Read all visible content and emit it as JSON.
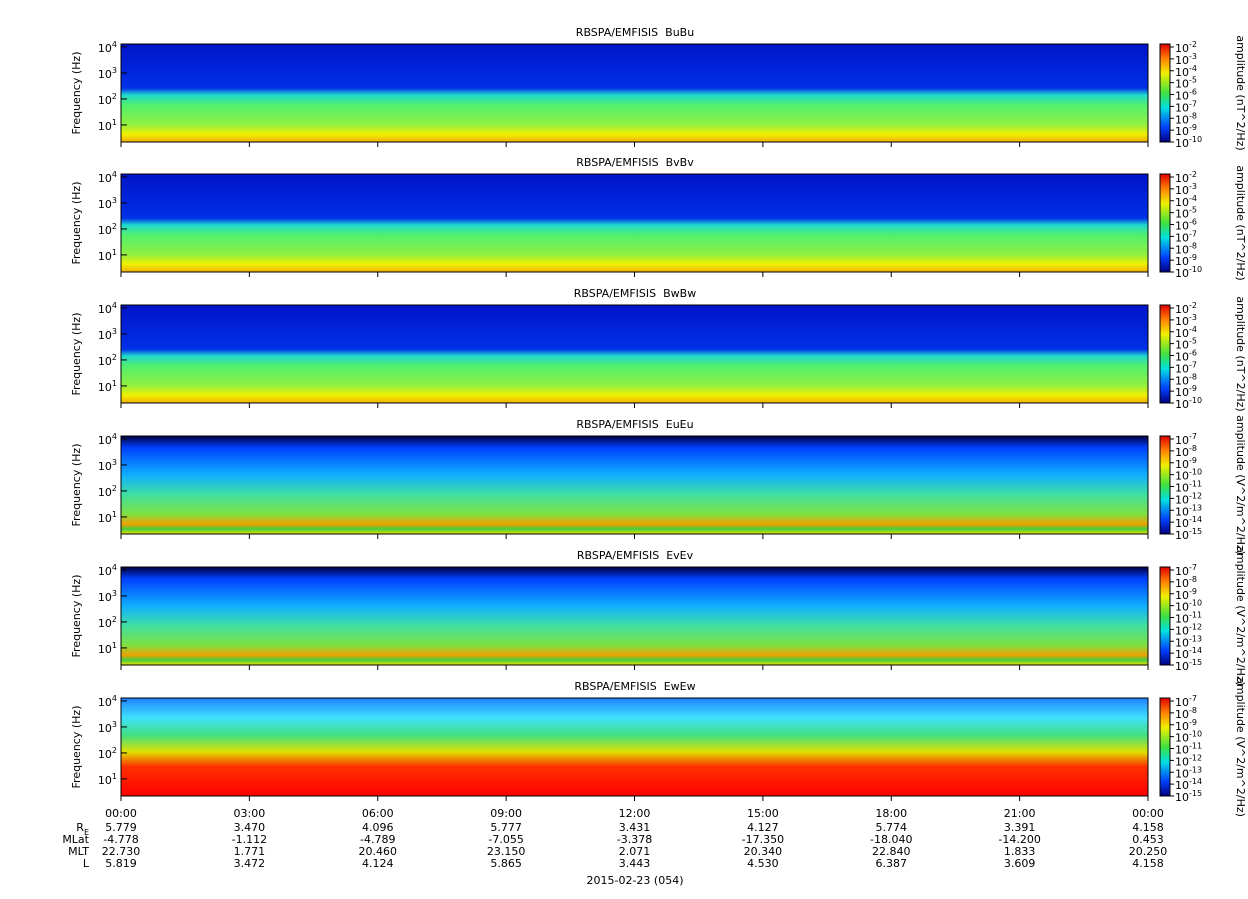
{
  "chart_data": [
    {
      "type": "spectrogram",
      "title": "RBSPA/EMFISIS  BuBu",
      "ylabel": "Frequency (Hz)",
      "ylog": true,
      "ylim": [
        2.2,
        13000
      ],
      "yticks": [
        {
          "value": 10,
          "label": "10^1"
        },
        {
          "value": 100,
          "label": "10^2"
        },
        {
          "value": 1000,
          "label": "10^3"
        },
        {
          "value": 10000,
          "label": "10^4"
        }
      ],
      "colorbar": {
        "label": "amplitude (nT^2/Hz)",
        "log": true,
        "lim": [
          1e-10,
          0.01
        ],
        "ticks": [
          {
            "value": 0.01,
            "label": "10^-2"
          },
          {
            "value": 0.001,
            "label": "10^-3"
          },
          {
            "value": 0.0001,
            "label": "10^-4"
          },
          {
            "value": 1e-05,
            "label": "10^-5"
          },
          {
            "value": 1e-06,
            "label": "10^-6"
          },
          {
            "value": 1e-07,
            "label": "10^-7"
          },
          {
            "value": 1e-08,
            "label": "10^-8"
          },
          {
            "value": 1e-09,
            "label": "10^-9"
          },
          {
            "value": 1e-10,
            "label": "10^-10"
          }
        ]
      }
    },
    {
      "type": "spectrogram",
      "title": "RBSPA/EMFISIS  BvBv",
      "ylabel": "Frequency (Hz)",
      "ylog": true,
      "ylim": [
        2.2,
        13000
      ],
      "yticks": [
        {
          "value": 10,
          "label": "10^1"
        },
        {
          "value": 100,
          "label": "10^2"
        },
        {
          "value": 1000,
          "label": "10^3"
        },
        {
          "value": 10000,
          "label": "10^4"
        }
      ],
      "colorbar": {
        "label": "amplitude (nT^2/Hz)",
        "log": true,
        "lim": [
          1e-10,
          0.01
        ],
        "ticks": [
          {
            "value": 0.01,
            "label": "10^-2"
          },
          {
            "value": 0.001,
            "label": "10^-3"
          },
          {
            "value": 0.0001,
            "label": "10^-4"
          },
          {
            "value": 1e-05,
            "label": "10^-5"
          },
          {
            "value": 1e-06,
            "label": "10^-6"
          },
          {
            "value": 1e-07,
            "label": "10^-7"
          },
          {
            "value": 1e-08,
            "label": "10^-8"
          },
          {
            "value": 1e-09,
            "label": "10^-9"
          },
          {
            "value": 1e-10,
            "label": "10^-10"
          }
        ]
      }
    },
    {
      "type": "spectrogram",
      "title": "RBSPA/EMFISIS  BwBw",
      "ylabel": "Frequency (Hz)",
      "ylog": true,
      "ylim": [
        2.2,
        13000
      ],
      "yticks": [
        {
          "value": 10,
          "label": "10^1"
        },
        {
          "value": 100,
          "label": "10^2"
        },
        {
          "value": 1000,
          "label": "10^3"
        },
        {
          "value": 10000,
          "label": "10^4"
        }
      ],
      "colorbar": {
        "label": "amplitude (nT^2/Hz)",
        "log": true,
        "lim": [
          1e-10,
          0.01
        ],
        "ticks": [
          {
            "value": 0.01,
            "label": "10^-2"
          },
          {
            "value": 0.001,
            "label": "10^-3"
          },
          {
            "value": 0.0001,
            "label": "10^-4"
          },
          {
            "value": 1e-05,
            "label": "10^-5"
          },
          {
            "value": 1e-06,
            "label": "10^-6"
          },
          {
            "value": 1e-07,
            "label": "10^-7"
          },
          {
            "value": 1e-08,
            "label": "10^-8"
          },
          {
            "value": 1e-09,
            "label": "10^-9"
          },
          {
            "value": 1e-10,
            "label": "10^-10"
          }
        ]
      }
    },
    {
      "type": "spectrogram",
      "title": "RBSPA/EMFISIS  EuEu",
      "ylabel": "Frequency (Hz)",
      "ylog": true,
      "ylim": [
        2.2,
        13000
      ],
      "yticks": [
        {
          "value": 10,
          "label": "10^1"
        },
        {
          "value": 100,
          "label": "10^2"
        },
        {
          "value": 1000,
          "label": "10^3"
        },
        {
          "value": 10000,
          "label": "10^4"
        }
      ],
      "colorbar": {
        "label": "amplitude (V^2/m^2/Hz)",
        "log": true,
        "lim": [
          1e-15,
          1e-07
        ],
        "ticks": [
          {
            "value": 1e-07,
            "label": "10^-7"
          },
          {
            "value": 1e-08,
            "label": "10^-8"
          },
          {
            "value": 1e-09,
            "label": "10^-9"
          },
          {
            "value": 1e-10,
            "label": "10^-10"
          },
          {
            "value": 1e-11,
            "label": "10^-11"
          },
          {
            "value": 1e-12,
            "label": "10^-12"
          },
          {
            "value": 1e-13,
            "label": "10^-13"
          },
          {
            "value": 1e-14,
            "label": "10^-14"
          },
          {
            "value": 1e-15,
            "label": "10^-15"
          }
        ]
      }
    },
    {
      "type": "spectrogram",
      "title": "RBSPA/EMFISIS  EvEv",
      "ylabel": "Frequency (Hz)",
      "ylog": true,
      "ylim": [
        2.2,
        13000
      ],
      "yticks": [
        {
          "value": 10,
          "label": "10^1"
        },
        {
          "value": 100,
          "label": "10^2"
        },
        {
          "value": 1000,
          "label": "10^3"
        },
        {
          "value": 10000,
          "label": "10^4"
        }
      ],
      "colorbar": {
        "label": "amplitude (V^2/m^2/Hz)",
        "log": true,
        "lim": [
          1e-15,
          1e-07
        ],
        "ticks": [
          {
            "value": 1e-07,
            "label": "10^-7"
          },
          {
            "value": 1e-08,
            "label": "10^-8"
          },
          {
            "value": 1e-09,
            "label": "10^-9"
          },
          {
            "value": 1e-10,
            "label": "10^-10"
          },
          {
            "value": 1e-11,
            "label": "10^-11"
          },
          {
            "value": 1e-12,
            "label": "10^-12"
          },
          {
            "value": 1e-13,
            "label": "10^-13"
          },
          {
            "value": 1e-14,
            "label": "10^-14"
          },
          {
            "value": 1e-15,
            "label": "10^-15"
          }
        ]
      }
    },
    {
      "type": "spectrogram",
      "title": "RBSPA/EMFISIS  EwEw",
      "ylabel": "Frequency (Hz)",
      "ylog": true,
      "ylim": [
        2.2,
        13000
      ],
      "yticks": [
        {
          "value": 10,
          "label": "10^1"
        },
        {
          "value": 100,
          "label": "10^2"
        },
        {
          "value": 1000,
          "label": "10^3"
        },
        {
          "value": 10000,
          "label": "10^4"
        }
      ],
      "colorbar": {
        "label": "amplitude (V^2/m^2/Hz)",
        "log": true,
        "lim": [
          1e-15,
          1e-07
        ],
        "ticks": [
          {
            "value": 1e-07,
            "label": "10^-7"
          },
          {
            "value": 1e-08,
            "label": "10^-8"
          },
          {
            "value": 1e-09,
            "label": "10^-9"
          },
          {
            "value": 1e-10,
            "label": "10^-10"
          },
          {
            "value": 1e-11,
            "label": "10^-11"
          },
          {
            "value": 1e-12,
            "label": "10^-12"
          },
          {
            "value": 1e-13,
            "label": "10^-13"
          },
          {
            "value": 1e-14,
            "label": "10^-14"
          },
          {
            "value": 1e-15,
            "label": "10^-15"
          }
        ]
      }
    }
  ],
  "time_axis": {
    "xlim": [
      0,
      24
    ],
    "xticks": [
      {
        "value": 0,
        "label": "00:00"
      },
      {
        "value": 3,
        "label": "03:00"
      },
      {
        "value": 6,
        "label": "06:00"
      },
      {
        "value": 9,
        "label": "09:00"
      },
      {
        "value": 12,
        "label": "12:00"
      },
      {
        "value": 15,
        "label": "15:00"
      },
      {
        "value": 18,
        "label": "18:00"
      },
      {
        "value": 21,
        "label": "21:00"
      },
      {
        "value": 24,
        "label": "00:00"
      }
    ],
    "date": "2015-02-23 (054)"
  },
  "ephemeris": [
    {
      "label": "R_E",
      "values": [
        "5.779",
        "3.470",
        "4.096",
        "5.777",
        "3.431",
        "4.127",
        "5.774",
        "3.391",
        "4.158"
      ]
    },
    {
      "label": "MLat",
      "values": [
        "-4.778",
        "-1.112",
        "-4.789",
        "-7.055",
        "-3.378",
        "-17.350",
        "-18.040",
        "-14.200",
        "0.453"
      ]
    },
    {
      "label": "MLT",
      "values": [
        "22.730",
        "1.771",
        "20.460",
        "23.150",
        "2.071",
        "20.340",
        "22.840",
        "1.833",
        "20.250"
      ]
    },
    {
      "label": "L",
      "values": [
        "5.819",
        "3.472",
        "4.124",
        "5.865",
        "3.443",
        "4.530",
        "6.387",
        "3.609",
        "4.158"
      ]
    }
  ]
}
